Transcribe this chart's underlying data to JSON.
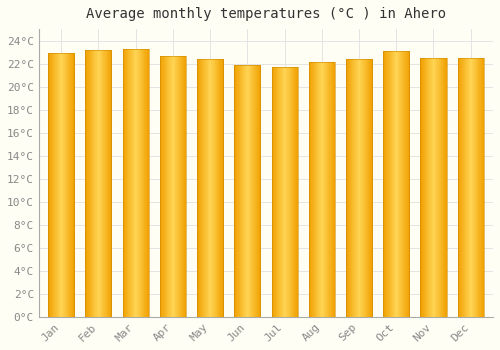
{
  "title": "Average monthly temperatures (°C ) in Ahero",
  "months": [
    "Jan",
    "Feb",
    "Mar",
    "Apr",
    "May",
    "Jun",
    "Jul",
    "Aug",
    "Sep",
    "Oct",
    "Nov",
    "Dec"
  ],
  "values": [
    22.9,
    23.2,
    23.3,
    22.7,
    22.4,
    21.9,
    21.7,
    22.1,
    22.4,
    23.1,
    22.5,
    22.5
  ],
  "bar_color_edge": "#F0A000",
  "bar_color_center": "#FFD555",
  "background_color": "#FFFEF5",
  "grid_color": "#E0E0E0",
  "ylim": [
    0,
    25
  ],
  "yticks": [
    0,
    2,
    4,
    6,
    8,
    10,
    12,
    14,
    16,
    18,
    20,
    22,
    24
  ],
  "title_fontsize": 10,
  "tick_fontsize": 8,
  "bar_width": 0.7,
  "gradient_steps": 50
}
